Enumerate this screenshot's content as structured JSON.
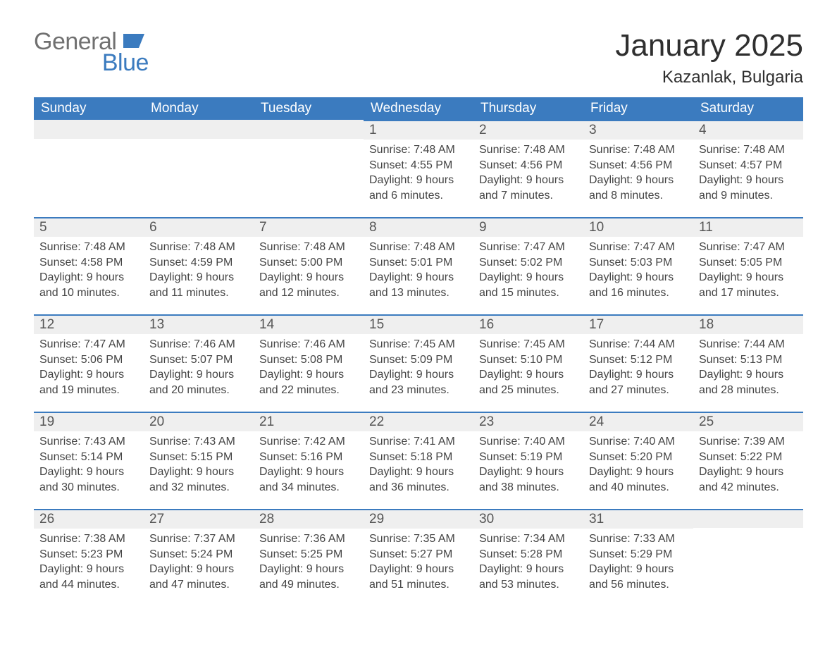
{
  "logo": {
    "text_general": "General",
    "text_blue": "Blue",
    "flag_color": "#3b7bbf",
    "general_color": "#707070"
  },
  "header": {
    "month_title": "January 2025",
    "location": "Kazanlak, Bulgaria",
    "title_fontsize": 44,
    "location_fontsize": 24,
    "title_color": "#2f2f2f"
  },
  "calendar": {
    "header_bg": "#3b7bbf",
    "header_text_color": "#ffffff",
    "daynum_bg": "#efefef",
    "daynum_border_top": "#3b7bbf",
    "body_text_color": "#444444",
    "font_family": "Arial",
    "columns": [
      "Sunday",
      "Monday",
      "Tuesday",
      "Wednesday",
      "Thursday",
      "Friday",
      "Saturday"
    ],
    "first_weekday_index": 3,
    "days": [
      {
        "n": 1,
        "sunrise": "7:48 AM",
        "sunset": "4:55 PM",
        "daylight": "9 hours and 6 minutes."
      },
      {
        "n": 2,
        "sunrise": "7:48 AM",
        "sunset": "4:56 PM",
        "daylight": "9 hours and 7 minutes."
      },
      {
        "n": 3,
        "sunrise": "7:48 AM",
        "sunset": "4:56 PM",
        "daylight": "9 hours and 8 minutes."
      },
      {
        "n": 4,
        "sunrise": "7:48 AM",
        "sunset": "4:57 PM",
        "daylight": "9 hours and 9 minutes."
      },
      {
        "n": 5,
        "sunrise": "7:48 AM",
        "sunset": "4:58 PM",
        "daylight": "9 hours and 10 minutes."
      },
      {
        "n": 6,
        "sunrise": "7:48 AM",
        "sunset": "4:59 PM",
        "daylight": "9 hours and 11 minutes."
      },
      {
        "n": 7,
        "sunrise": "7:48 AM",
        "sunset": "5:00 PM",
        "daylight": "9 hours and 12 minutes."
      },
      {
        "n": 8,
        "sunrise": "7:48 AM",
        "sunset": "5:01 PM",
        "daylight": "9 hours and 13 minutes."
      },
      {
        "n": 9,
        "sunrise": "7:47 AM",
        "sunset": "5:02 PM",
        "daylight": "9 hours and 15 minutes."
      },
      {
        "n": 10,
        "sunrise": "7:47 AM",
        "sunset": "5:03 PM",
        "daylight": "9 hours and 16 minutes."
      },
      {
        "n": 11,
        "sunrise": "7:47 AM",
        "sunset": "5:05 PM",
        "daylight": "9 hours and 17 minutes."
      },
      {
        "n": 12,
        "sunrise": "7:47 AM",
        "sunset": "5:06 PM",
        "daylight": "9 hours and 19 minutes."
      },
      {
        "n": 13,
        "sunrise": "7:46 AM",
        "sunset": "5:07 PM",
        "daylight": "9 hours and 20 minutes."
      },
      {
        "n": 14,
        "sunrise": "7:46 AM",
        "sunset": "5:08 PM",
        "daylight": "9 hours and 22 minutes."
      },
      {
        "n": 15,
        "sunrise": "7:45 AM",
        "sunset": "5:09 PM",
        "daylight": "9 hours and 23 minutes."
      },
      {
        "n": 16,
        "sunrise": "7:45 AM",
        "sunset": "5:10 PM",
        "daylight": "9 hours and 25 minutes."
      },
      {
        "n": 17,
        "sunrise": "7:44 AM",
        "sunset": "5:12 PM",
        "daylight": "9 hours and 27 minutes."
      },
      {
        "n": 18,
        "sunrise": "7:44 AM",
        "sunset": "5:13 PM",
        "daylight": "9 hours and 28 minutes."
      },
      {
        "n": 19,
        "sunrise": "7:43 AM",
        "sunset": "5:14 PM",
        "daylight": "9 hours and 30 minutes."
      },
      {
        "n": 20,
        "sunrise": "7:43 AM",
        "sunset": "5:15 PM",
        "daylight": "9 hours and 32 minutes."
      },
      {
        "n": 21,
        "sunrise": "7:42 AM",
        "sunset": "5:16 PM",
        "daylight": "9 hours and 34 minutes."
      },
      {
        "n": 22,
        "sunrise": "7:41 AM",
        "sunset": "5:18 PM",
        "daylight": "9 hours and 36 minutes."
      },
      {
        "n": 23,
        "sunrise": "7:40 AM",
        "sunset": "5:19 PM",
        "daylight": "9 hours and 38 minutes."
      },
      {
        "n": 24,
        "sunrise": "7:40 AM",
        "sunset": "5:20 PM",
        "daylight": "9 hours and 40 minutes."
      },
      {
        "n": 25,
        "sunrise": "7:39 AM",
        "sunset": "5:22 PM",
        "daylight": "9 hours and 42 minutes."
      },
      {
        "n": 26,
        "sunrise": "7:38 AM",
        "sunset": "5:23 PM",
        "daylight": "9 hours and 44 minutes."
      },
      {
        "n": 27,
        "sunrise": "7:37 AM",
        "sunset": "5:24 PM",
        "daylight": "9 hours and 47 minutes."
      },
      {
        "n": 28,
        "sunrise": "7:36 AM",
        "sunset": "5:25 PM",
        "daylight": "9 hours and 49 minutes."
      },
      {
        "n": 29,
        "sunrise": "7:35 AM",
        "sunset": "5:27 PM",
        "daylight": "9 hours and 51 minutes."
      },
      {
        "n": 30,
        "sunrise": "7:34 AM",
        "sunset": "5:28 PM",
        "daylight": "9 hours and 53 minutes."
      },
      {
        "n": 31,
        "sunrise": "7:33 AM",
        "sunset": "5:29 PM",
        "daylight": "9 hours and 56 minutes."
      }
    ],
    "labels": {
      "sunrise": "Sunrise: ",
      "sunset": "Sunset: ",
      "daylight": "Daylight: "
    }
  }
}
